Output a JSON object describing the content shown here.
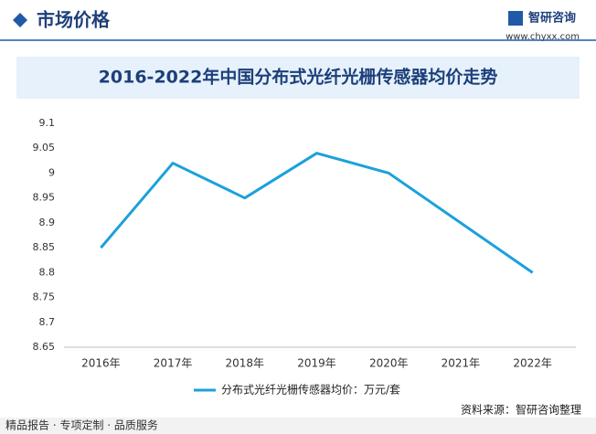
{
  "header": {
    "title": "市场价格",
    "brand": "智研咨询",
    "url": "www.chyxx.com"
  },
  "chart_data": {
    "type": "line",
    "title": "2016-2022年中国分布式光纤光栅传感器均价走势",
    "categories": [
      "2016年",
      "2017年",
      "2018年",
      "2019年",
      "2020年",
      "2021年",
      "2022年"
    ],
    "series": [
      {
        "name": "分布式光纤光栅传感器均价：万元/套",
        "color": "#1ba1db",
        "values": [
          8.85,
          9.02,
          8.95,
          9.04,
          9.0,
          8.9,
          8.8
        ]
      }
    ],
    "ylim": [
      8.65,
      9.1
    ],
    "yticks": [
      8.65,
      8.7,
      8.75,
      8.8,
      8.85,
      8.9,
      8.95,
      9,
      9.05,
      9.1
    ],
    "grid": false,
    "legend": "bottom"
  },
  "source": "资料来源：智研咨询整理",
  "footer": "精品报告 · 专项定制 · 品质服务"
}
